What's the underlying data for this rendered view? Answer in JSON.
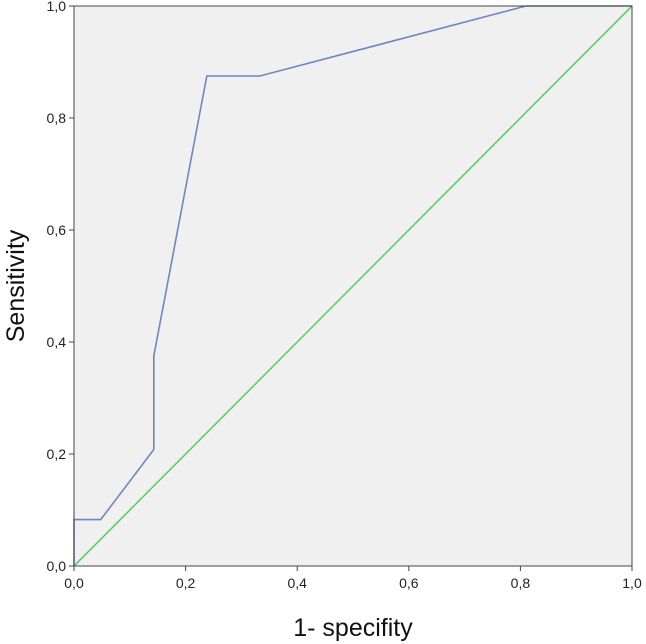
{
  "chart_data": {
    "type": "line",
    "title": "",
    "xlabel": "1- specifity",
    "ylabel": "Sensitivity",
    "xlim": [
      0,
      1
    ],
    "ylim": [
      0,
      1
    ],
    "xticks": [
      0,
      0.2,
      0.4,
      0.6,
      0.8,
      1.0
    ],
    "yticks": [
      0,
      0.2,
      0.4,
      0.6,
      0.8,
      1.0
    ],
    "xtick_labels": [
      "0,0",
      "0,2",
      "0,4",
      "0,6",
      "0,8",
      "1,0"
    ],
    "ytick_labels": [
      "0,0",
      "0,2",
      "0,4",
      "0,6",
      "0,8",
      "1,0"
    ],
    "grid": false,
    "legend": "none",
    "series": [
      {
        "color": "#6f86c2",
        "points": [
          [
            0,
            0
          ],
          [
            0,
            0.083
          ],
          [
            0.048,
            0.083
          ],
          [
            0.143,
            0.208
          ],
          [
            0.143,
            0.375
          ],
          [
            0.238,
            0.875
          ],
          [
            0.333,
            0.875
          ],
          [
            0.81,
            1.0
          ],
          [
            1.0,
            1.0
          ]
        ]
      },
      {
        "color": "#5ccf6a",
        "points": [
          [
            0,
            0
          ],
          [
            1,
            1
          ]
        ]
      }
    ],
    "plot_background": "#f0f0f0"
  }
}
